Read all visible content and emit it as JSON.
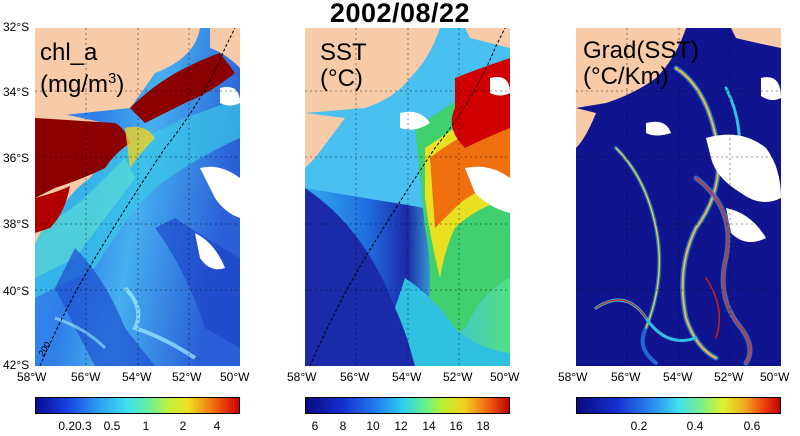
{
  "title": "2002/08/22",
  "lat_ticks": [
    "32°S",
    "34°S",
    "36°S",
    "38°S",
    "40°S",
    "42°S"
  ],
  "lon_ticks": [
    "58°W",
    "56°W",
    "54°W",
    "52°W",
    "50°W"
  ],
  "panels": [
    {
      "label_line1": "chl_a",
      "label_line2_pre": "(mg/m",
      "label_line2_sup": "3",
      "label_line2_post": ")",
      "colorbar_ticks": [
        "0.20.3",
        "0.5",
        "1",
        "2",
        "4"
      ],
      "isobath_label": "200"
    },
    {
      "label_line1": "SST",
      "label_line2": "(°C)",
      "colorbar_ticks": [
        "6",
        "8",
        "10",
        "12",
        "14",
        "16",
        "18"
      ]
    },
    {
      "label_line1": "Grad(SST)",
      "label_line2": "(°C/Km)",
      "colorbar_ticks": [
        "0.2",
        "0.4",
        "0.6"
      ]
    }
  ],
  "colors": {
    "land": "#f8cba8",
    "chl_high": "#8b0000",
    "sst_cold": "#1b2aa8",
    "grad_low": "#10158f"
  }
}
